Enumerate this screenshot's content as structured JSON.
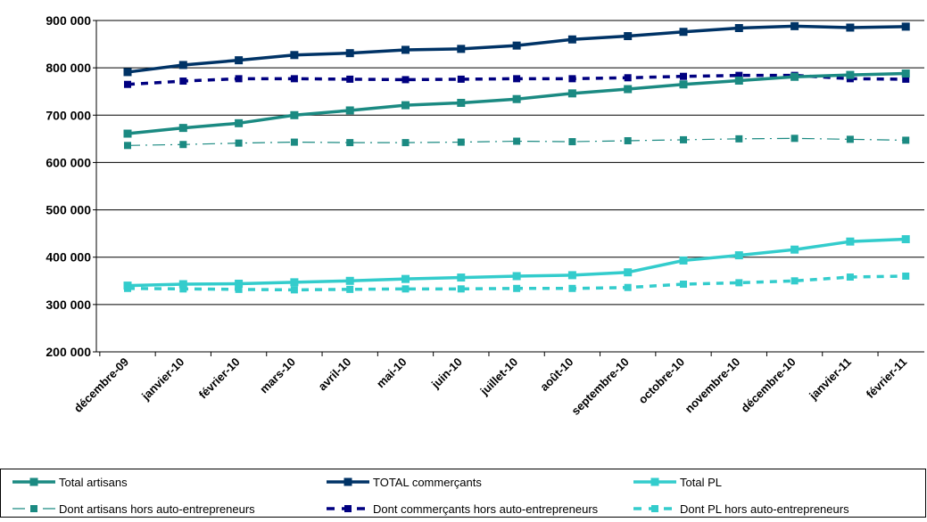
{
  "chart_data": {
    "type": "line",
    "title": "",
    "xlabel": "",
    "ylabel": "",
    "ylim": [
      200000,
      900000
    ],
    "yticks": [
      200000,
      300000,
      400000,
      500000,
      600000,
      700000,
      800000,
      900000
    ],
    "ytick_labels": [
      "200 000",
      "300 000",
      "400 000",
      "500 000",
      "600 000",
      "700 000",
      "800 000",
      "900 000"
    ],
    "grid": "horizontal",
    "legend_position": "bottom",
    "categories": [
      "décembre-09",
      "janvier-10",
      "février-10",
      "mars-10",
      "avril-10",
      "mai-10",
      "juin-10",
      "juillet-10",
      "août-10",
      "septembre-10",
      "octobre-10",
      "novembre-10",
      "décembre-10",
      "janvier-11",
      "février-11"
    ],
    "series": [
      {
        "name": "Total artisans",
        "color": "#1b8a82",
        "style": "solid",
        "values": [
          661000,
          673000,
          683000,
          700000,
          710000,
          721000,
          726000,
          734000,
          746000,
          755000,
          765000,
          773000,
          781000,
          785000,
          788000
        ]
      },
      {
        "name": "TOTAL commerçants",
        "color": "#003366",
        "style": "solid",
        "values": [
          791000,
          806000,
          816000,
          827000,
          831000,
          838000,
          840000,
          847000,
          860000,
          867000,
          876000,
          884000,
          888000,
          885000,
          887000
        ]
      },
      {
        "name": "Total PL",
        "color": "#33cccc",
        "style": "solid",
        "values": [
          340000,
          343000,
          344000,
          347000,
          350000,
          354000,
          357000,
          360000,
          362000,
          368000,
          393000,
          404000,
          416000,
          433000,
          438000
        ]
      },
      {
        "name": "Dont artisans hors auto-entrepreneurs",
        "color": "#1b8a82",
        "style": "dashdot",
        "values": [
          636000,
          638000,
          641000,
          643000,
          642000,
          642000,
          643000,
          645000,
          644000,
          646000,
          648000,
          650000,
          651000,
          649000,
          647000
        ]
      },
      {
        "name": "Dont commerçants hors auto-entrepreneurs",
        "color": "#000080",
        "style": "dash",
        "values": [
          765000,
          772000,
          777000,
          777000,
          776000,
          775000,
          776000,
          777000,
          777000,
          779000,
          782000,
          784000,
          784000,
          777000,
          776000
        ]
      },
      {
        "name": "Dont PL hors auto-entrepreneurs",
        "color": "#33cccc",
        "style": "dash",
        "values": [
          334000,
          333000,
          332000,
          331000,
          332000,
          333000,
          333000,
          334000,
          334000,
          336000,
          343000,
          346000,
          350000,
          358000,
          360000
        ]
      }
    ]
  }
}
